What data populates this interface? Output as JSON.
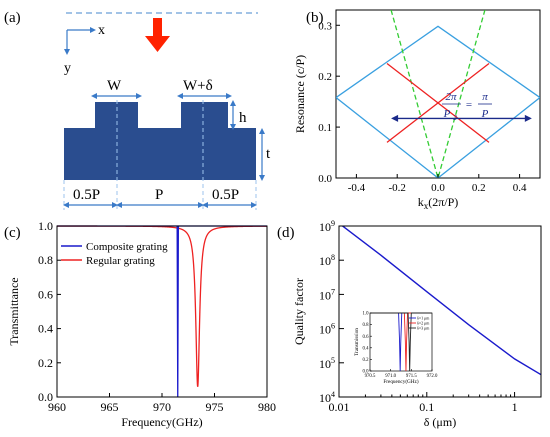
{
  "figure": {
    "panel_a": {
      "tag": "(a)",
      "axis_x": "x",
      "axis_y": "y",
      "label_w": "W",
      "label_wd": "W+δ",
      "label_h": "h",
      "label_t": "t",
      "label_half_left": "0.5P",
      "label_p": "P",
      "label_half_right": "0.5P",
      "colors": {
        "grating": "#2a4d8f",
        "arrow": "#ff2200",
        "dash": "#6a9fd8"
      }
    },
    "panel_b": {
      "tag": "(b)",
      "equation_lhs_num": "2π",
      "equation_lhs_den": "P",
      "equation_lhs_sub": "2",
      "equation_eq": "=",
      "equation_rhs_num": "π",
      "equation_rhs_den": "P"
    },
    "panel_c": {
      "tag": "(c)"
    },
    "panel_d": {
      "tag": "(d)"
    }
  },
  "chart_data": [
    {
      "panel": "b",
      "type": "line",
      "xlabel": "kx(2π/P)",
      "xlabel_main": "k",
      "xlabel_sub": "x",
      "xlabel_rest": "(2π/P)",
      "ylabel": "Resonance (c/P)",
      "xlim": [
        -0.5,
        0.5
      ],
      "ylim": [
        0,
        0.33
      ],
      "xticks": [
        -0.4,
        -0.2,
        0.0,
        0.2,
        0.4
      ],
      "xtick_labels": [
        "-0.4",
        "-0.2",
        "0.0",
        "0.2",
        "0.4"
      ],
      "yticks": [
        0.0,
        0.1,
        0.2,
        0.3
      ],
      "ytick_labels": [
        "0.0",
        "0.1",
        "0.2",
        "0.3"
      ],
      "series": [
        {
          "style": "solid",
          "color": "#3aa0e0",
          "x": [
            -0.5,
            0,
            0.5
          ],
          "y": [
            0.158,
            0.0,
            0.158
          ]
        },
        {
          "style": "solid",
          "color": "#3aa0e0",
          "x": [
            -0.5,
            0,
            0.5
          ],
          "y": [
            0.158,
            0.298,
            0.158
          ]
        },
        {
          "style": "dashed",
          "color": "#33cc33",
          "x": [
            -0.23,
            0,
            0.23
          ],
          "y": [
            0.33,
            0.0,
            0.33
          ]
        },
        {
          "style": "solid",
          "color": "#ee2222",
          "x": [
            -0.25,
            0.25
          ],
          "y": [
            0.07,
            0.225
          ]
        },
        {
          "style": "solid",
          "color": "#ee2222",
          "x": [
            -0.25,
            0.25
          ],
          "y": [
            0.225,
            0.07
          ]
        }
      ],
      "annotation_arrow": {
        "x": [
          -0.23,
          0.46
        ],
        "y": 0.117,
        "color": "#1a2a8a"
      }
    },
    {
      "panel": "c",
      "type": "line",
      "xlabel": "Frequency(GHz)",
      "ylabel": "Transmittance",
      "xlim": [
        960,
        980
      ],
      "ylim": [
        0,
        1.0
      ],
      "xticks": [
        960,
        965,
        970,
        975,
        980
      ],
      "xtick_labels": [
        "960",
        "965",
        "970",
        "975",
        "980"
      ],
      "yticks": [
        0.0,
        0.2,
        0.4,
        0.6,
        0.8,
        1.0
      ],
      "ytick_labels": [
        "0.0",
        "0.2",
        "0.4",
        "0.6",
        "0.8",
        "1.0"
      ],
      "legend": "top-left",
      "series": [
        {
          "name": "Composite grating",
          "color": "#1a1acc",
          "center": 971.5,
          "width": 0.004,
          "min": 0.0
        },
        {
          "name": "Regular grating",
          "color": "#ee2222",
          "center": 973.4,
          "width": 0.22,
          "min": 0.06
        }
      ]
    },
    {
      "panel": "d",
      "type": "line",
      "xlabel": "δ (μm)",
      "ylabel": "Quality factor",
      "xscale": "log",
      "yscale": "log",
      "xlim": [
        0.01,
        2
      ],
      "ylim": [
        10000,
        1000000000
      ],
      "xticks": [
        0.01,
        0.1,
        1
      ],
      "xtick_labels": [
        "0.01",
        "0.1",
        "1"
      ],
      "yticks": [
        10000,
        100000,
        1000000,
        10000000,
        100000000,
        1000000000
      ],
      "ytick_base": "10",
      "ytick_exps": [
        "4",
        "5",
        "6",
        "7",
        "8",
        "9"
      ],
      "series": [
        {
          "color": "#1a1acc",
          "x": [
            0.01,
            0.03,
            0.1,
            0.3,
            1,
            2
          ],
          "y": [
            1200000000,
            140000000,
            12000000,
            1300000,
            130000,
            45000
          ]
        }
      ],
      "inset": {
        "type": "line",
        "xlabel": "Frequency(GHz)",
        "ylabel": "Transmission",
        "xlim": [
          970.5,
          972.0
        ],
        "ylim": [
          0,
          1.0
        ],
        "xticks": [
          970.5,
          971.0,
          971.5,
          972.0
        ],
        "xtick_labels": [
          "970.5",
          "971.0",
          "971.5",
          "972.0"
        ],
        "yticks": [
          0.0,
          0.2,
          0.4,
          0.6,
          0.8,
          1.0
        ],
        "ytick_labels": [
          "0.0",
          "0.2",
          "0.4",
          "0.6",
          "0.8",
          "1.0"
        ],
        "legend": "top-right",
        "series": [
          {
            "name": "δ=1 μm",
            "color": "#1a1acc",
            "center": 971.23,
            "width": 0.012
          },
          {
            "name": "δ=2 μm",
            "color": "#ee2222",
            "center": 971.37,
            "width": 0.012
          },
          {
            "name": "δ=3 μm",
            "color": "#222222",
            "center": 971.46,
            "width": 0.012
          }
        ]
      }
    }
  ]
}
